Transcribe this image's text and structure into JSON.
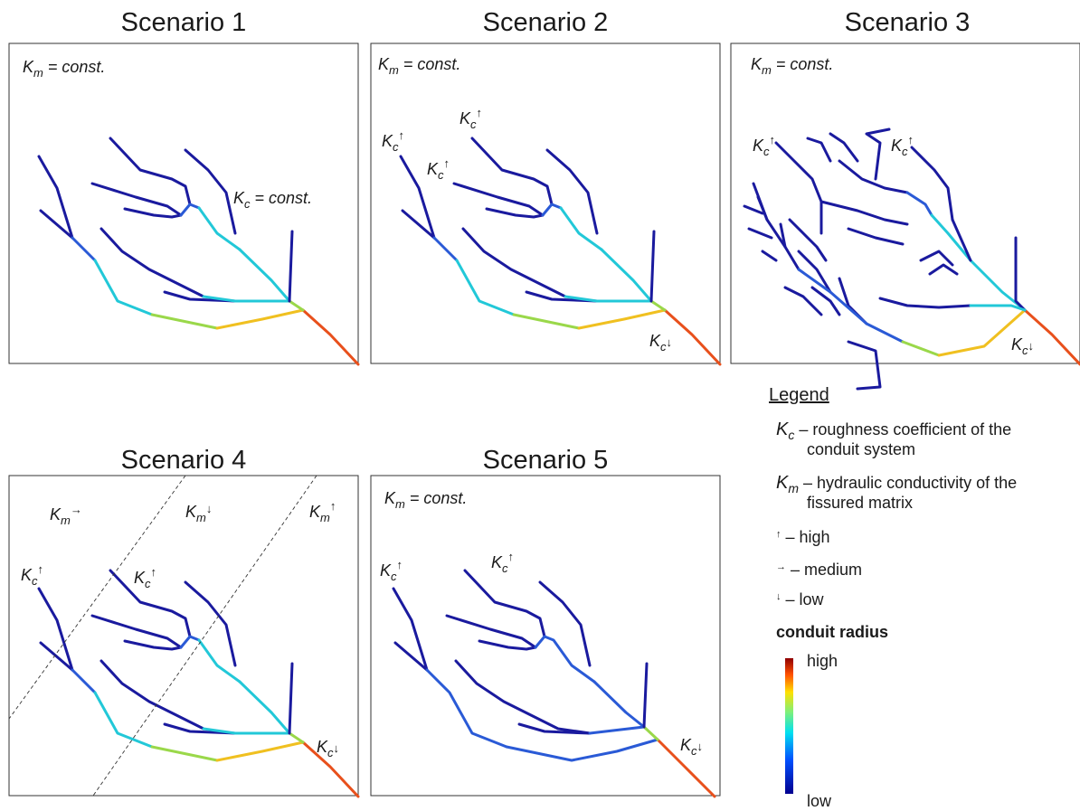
{
  "scenarios": [
    {
      "title": "Scenario 1",
      "km": {
        "sym": "K",
        "sub": "m",
        "text": " = const.",
        "arrow": ""
      },
      "kc_labels": [
        {
          "sym": "K",
          "sub": "c",
          "text": " = const.",
          "arrow": ""
        }
      ]
    },
    {
      "title": "Scenario 2",
      "km": {
        "sym": "K",
        "sub": "m",
        "text": " = const.",
        "arrow": ""
      },
      "kc_labels": [
        {
          "sym": "K",
          "sub": "c",
          "text": "",
          "arrow": "↑"
        },
        {
          "sym": "K",
          "sub": "c",
          "text": "",
          "arrow": "↑"
        },
        {
          "sym": "K",
          "sub": "c",
          "text": "",
          "arrow": "↑"
        },
        {
          "sym": "K",
          "sub": "c",
          "text": "",
          "arrow": "↓"
        }
      ]
    },
    {
      "title": "Scenario 3",
      "km": {
        "sym": "K",
        "sub": "m",
        "text": " = const.",
        "arrow": ""
      },
      "kc_labels": [
        {
          "sym": "K",
          "sub": "c",
          "text": "",
          "arrow": "↑"
        },
        {
          "sym": "K",
          "sub": "c",
          "text": "",
          "arrow": "↑"
        },
        {
          "sym": "K",
          "sub": "c",
          "text": "",
          "arrow": "↓"
        }
      ]
    },
    {
      "title": "Scenario 4",
      "km_zones": [
        {
          "sym": "K",
          "sub": "m",
          "text": "",
          "arrow": "→"
        },
        {
          "sym": "K",
          "sub": "m",
          "text": "",
          "arrow": "↓"
        },
        {
          "sym": "K",
          "sub": "m",
          "text": "",
          "arrow": "↑"
        }
      ],
      "kc_labels": [
        {
          "sym": "K",
          "sub": "c",
          "text": "",
          "arrow": "↑"
        },
        {
          "sym": "K",
          "sub": "c",
          "text": "",
          "arrow": "↑"
        },
        {
          "sym": "K",
          "sub": "c",
          "text": "",
          "arrow": "↓"
        }
      ]
    },
    {
      "title": "Scenario 5",
      "km": {
        "sym": "K",
        "sub": "m",
        "text": " = const.",
        "arrow": ""
      },
      "kc_labels": [
        {
          "sym": "K",
          "sub": "c",
          "text": "",
          "arrow": "↑"
        },
        {
          "sym": "K",
          "sub": "c",
          "text": "",
          "arrow": "↑"
        },
        {
          "sym": "K",
          "sub": "c",
          "text": "",
          "arrow": "↓"
        }
      ]
    }
  ],
  "legend": {
    "title": "Legend",
    "kc_symbol": "K",
    "kc_sub": "c",
    "kc_line1": " – roughness coefficient of the",
    "kc_line2": "conduit system",
    "km_symbol": "K",
    "km_sub": "m",
    "km_line1": " – hydraulic conductivity of the",
    "km_line2": "fissured matrix",
    "high_arrow": "↑",
    "high_text": " – high",
    "medium_arrow": "→",
    "medium_text": " – medium",
    "low_arrow": "↓",
    "low_text": " – low",
    "radius_title": "conduit radius",
    "radius_high": "high",
    "radius_low": "low"
  },
  "colors": {
    "low": "#1a1a9e",
    "low_mid": "#2a5ad6",
    "mid": "#22c8d8",
    "mid_high": "#9ad84a",
    "high_mid": "#f0c020",
    "high": "#e8501c",
    "highest": "#b02010"
  }
}
